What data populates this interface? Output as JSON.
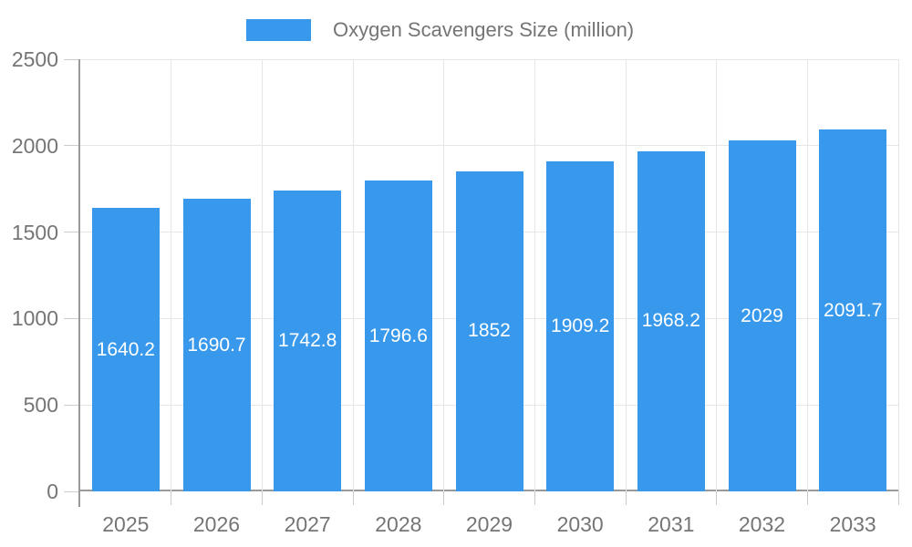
{
  "chart_data": {
    "type": "bar",
    "legend_label": "Oxygen Scavengers Size (million)",
    "categories": [
      "2025",
      "2026",
      "2027",
      "2028",
      "2029",
      "2030",
      "2031",
      "2032",
      "2033"
    ],
    "values": [
      1640.2,
      1690.7,
      1742.8,
      1796.6,
      1852,
      1909.2,
      1968.2,
      2029,
      2091.7
    ],
    "value_labels": [
      "1640.2",
      "1690.7",
      "1742.8",
      "1796.6",
      "1852",
      "1909.2",
      "1968.2",
      "2029",
      "2091.7"
    ],
    "xlabel": "",
    "ylabel": "",
    "ylim": [
      0,
      2500
    ],
    "yticks": [
      0,
      500,
      1000,
      1500,
      2000,
      2500
    ],
    "grid": true,
    "legend_position": "top-center",
    "colors": {
      "bar": "#3899EC",
      "bar_value_text": "#ffffff",
      "axis_text": "#757575",
      "axis_line": "#999999",
      "gridline": "#e6e6e6",
      "tick": "#cccccc",
      "background": "#ffffff"
    }
  }
}
